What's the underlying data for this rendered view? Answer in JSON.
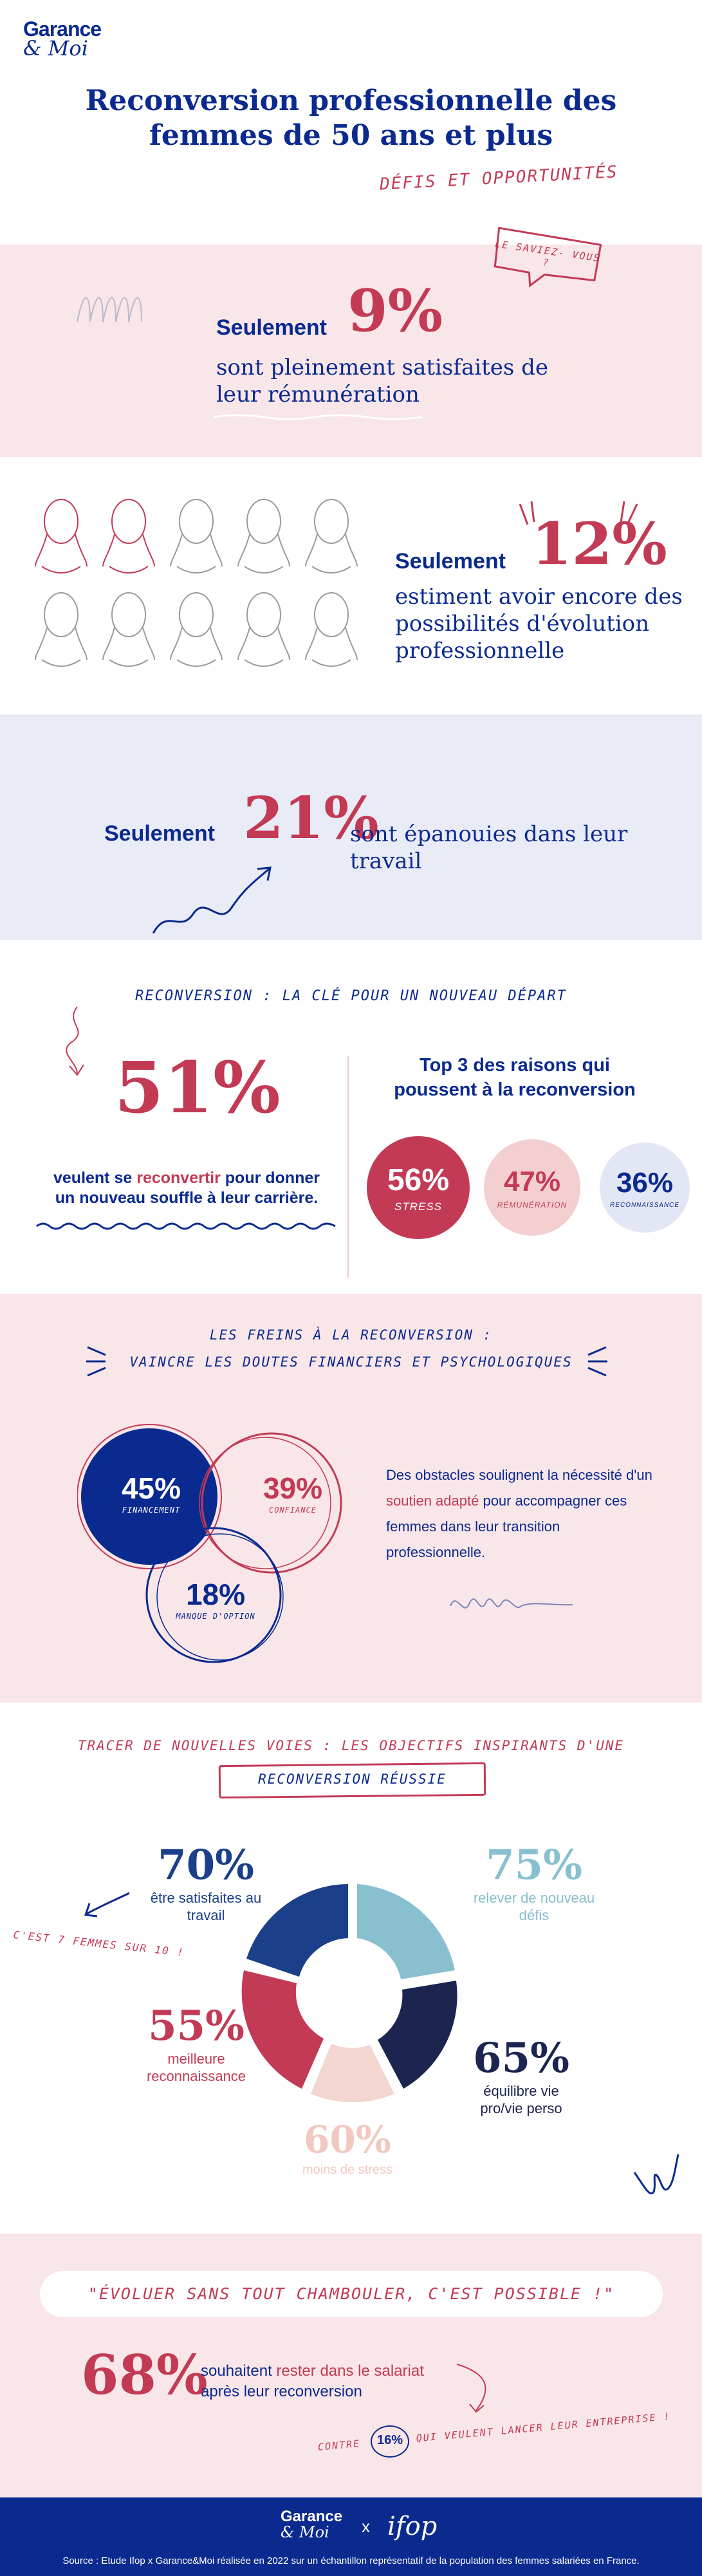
{
  "header": {
    "logo_line1": "Garance",
    "logo_line2": "& Moi",
    "title_line1": "Reconversion professionnelle des",
    "title_line2": "femmes de 50 ans et plus",
    "subtitle": "DÉFIS ET OPPORTUNITÉS"
  },
  "stat1": {
    "bubble": "LE SAVIEZ- VOUS ?",
    "prefix": "Seulement",
    "value": "9%",
    "text_line1": "sont pleinement satisfaites de",
    "text_line2": "leur rémunération"
  },
  "stat2": {
    "prefix": "Seulement",
    "value": "12%",
    "text_line1": "estiment avoir encore des",
    "text_line2": "possibilités d'évolution",
    "text_line3": "professionnelle"
  },
  "stat3": {
    "prefix": "Seulement",
    "value": "21%",
    "text": "sont épanouies dans leur travail"
  },
  "reconversion": {
    "heading": "RECONVERSION : LA CLÉ POUR UN NOUVEAU DÉPART",
    "value": "51%",
    "text_part1": "veulent se ",
    "text_highlight": "reconvertir",
    "text_part2": " pour donner",
    "text_line2": "un nouveau souffle à leur carrière.",
    "top3_line1": "Top 3 des raisons qui",
    "top3_line2": "poussent à la reconversion",
    "reasons": [
      {
        "value": "56%",
        "label": "STRESS",
        "color": "#c33a55"
      },
      {
        "value": "47%",
        "label": "RÉMUNÉRATION",
        "color": "#f4cfd0"
      },
      {
        "value": "36%",
        "label": "RECONNAISSANCE",
        "color": "#e3e6f5"
      }
    ]
  },
  "freins": {
    "heading_line1": "LES FREINS À LA RECONVERSION :",
    "heading_line2": "VAINCRE LES DOUTES FINANCIERS ET PSYCHOLOGIQUES",
    "circles": [
      {
        "value": "45%",
        "label": "FINANCEMENT",
        "color": "#0b2a8f"
      },
      {
        "value": "39%",
        "label": "CONFIANCE",
        "color": "#c33a55"
      },
      {
        "value": "18%",
        "label": "MANQUE D'OPTION",
        "color": "#0b2a8f"
      }
    ],
    "text_line1": "Des obstacles soulignent la nécessité d'un",
    "text_highlight": "soutien adapté",
    "text_line2_rest": " pour accompagner ces",
    "text_line3": "femmes dans leur transition",
    "text_line4": "professionnelle."
  },
  "objectifs": {
    "heading_line1": "TRACER DE NOUVELLES VOIES : LES OBJECTIFS INSPIRANTS D'UNE",
    "heading_line2": "RECONVERSION RÉUSSIE",
    "note": "C'EST 7 FEMMES SUR 10 !",
    "items": [
      {
        "value": "70%",
        "label_line1": "être satisfaites au",
        "label_line2": "travail",
        "color": "#1b3f8a"
      },
      {
        "value": "75%",
        "label_line1": "relever de nouveau",
        "label_line2": "défis",
        "color": "#88c0cf"
      },
      {
        "value": "65%",
        "label_line1": "équilibre vie",
        "label_line2": "pro/vie perso",
        "color": "#1c2450"
      },
      {
        "value": "60%",
        "label_line1": "moins de stress",
        "label_line2": "",
        "color": "#f2d6cf"
      },
      {
        "value": "55%",
        "label_line1": "meilleure",
        "label_line2": "reconnaissance",
        "color": "#c33a55"
      }
    ]
  },
  "salariat": {
    "quote": "\"ÉVOLUER SANS TOUT CHAMBOULER, C'EST POSSIBLE !\"",
    "value": "68%",
    "text_part1": "souhaitent ",
    "text_highlight": "rester dans le salariat",
    "text_line2": "après leur reconversion",
    "contre": "CONTRE",
    "contre_value": "16%",
    "contre_text": "QUI VEULENT LANCER LEUR ENTREPRISE !"
  },
  "footer": {
    "logo_line1": "Garance",
    "logo_line2": "& Moi",
    "cross": "x",
    "partner": "ifop",
    "source": "Source : Etude Ifop x Garance&Moi réalisée en 2022 sur un échantillon représentatif de la population des femmes salariées en France."
  },
  "colors": {
    "navy": "#0b2a8f",
    "red": "#c33a55",
    "pink_band": "#f8e6e8",
    "lavender_band": "#e9ebf6"
  }
}
